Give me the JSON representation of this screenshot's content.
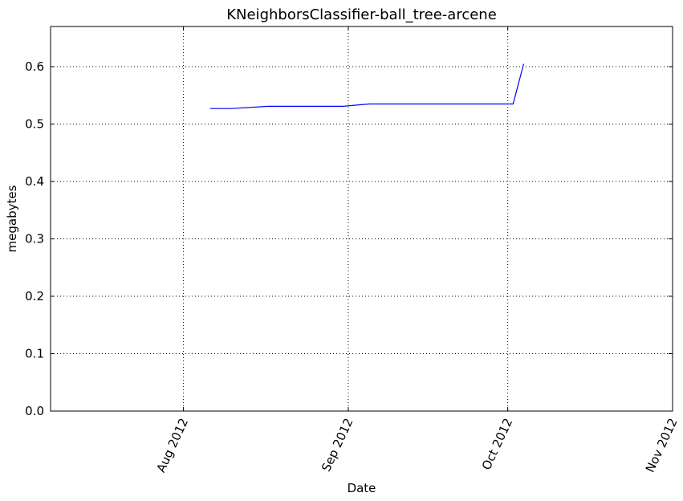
{
  "chart_data": {
    "type": "line",
    "title": "KNeighborsClassifier-ball_tree-arcene",
    "xlabel": "Date",
    "ylabel": "megabytes",
    "x_type": "date",
    "xlim": [
      "2012-07-07",
      "2012-11-01"
    ],
    "ylim": [
      0.0,
      0.67
    ],
    "y_ticks": [
      0.0,
      0.1,
      0.2,
      0.3,
      0.4,
      0.5,
      0.6
    ],
    "y_tick_labels": [
      "0.0",
      "0.1",
      "0.2",
      "0.3",
      "0.4",
      "0.5",
      "0.6"
    ],
    "x_ticks": [
      "2012-08-01",
      "2012-09-01",
      "2012-10-01",
      "2012-11-01"
    ],
    "x_tick_labels": [
      "Aug 2012",
      "Sep 2012",
      "Oct 2012",
      "Nov 2012"
    ],
    "grid": true,
    "series": [
      {
        "color": "#0000ff",
        "x": [
          "2012-08-06",
          "2012-08-10",
          "2012-08-17",
          "2012-08-31",
          "2012-09-05",
          "2012-10-02",
          "2012-10-04"
        ],
        "y": [
          0.527,
          0.527,
          0.531,
          0.531,
          0.535,
          0.535,
          0.605
        ]
      }
    ]
  }
}
